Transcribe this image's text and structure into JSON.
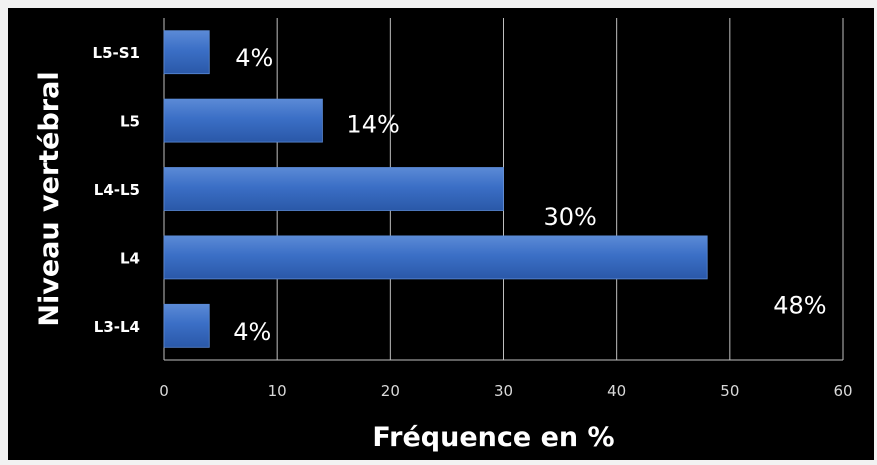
{
  "chart_data": {
    "type": "bar",
    "orientation": "horizontal",
    "categories": [
      "L5-S1",
      "L5",
      "L4-L5",
      "L4",
      "L3-L4"
    ],
    "values": [
      4,
      14,
      30,
      48,
      4
    ],
    "data_labels": [
      "4%",
      "14%",
      "30%",
      "48%",
      "4%"
    ],
    "title": "",
    "xlabel": "Fréquence en %",
    "ylabel": "Niveau vertébral",
    "xlim": [
      0,
      60
    ],
    "x_ticks": [
      0,
      10,
      20,
      30,
      40,
      50,
      60
    ],
    "grid": "vertical",
    "legend": "none",
    "colors": {
      "background": "#000000",
      "page": "#f2f2f2",
      "bar": "#3b6fc6",
      "bar_edge": "#5b8ad6",
      "grid": "#bfbfbf",
      "text": "#ffffff",
      "tick_text": "#d9d9d9"
    }
  }
}
